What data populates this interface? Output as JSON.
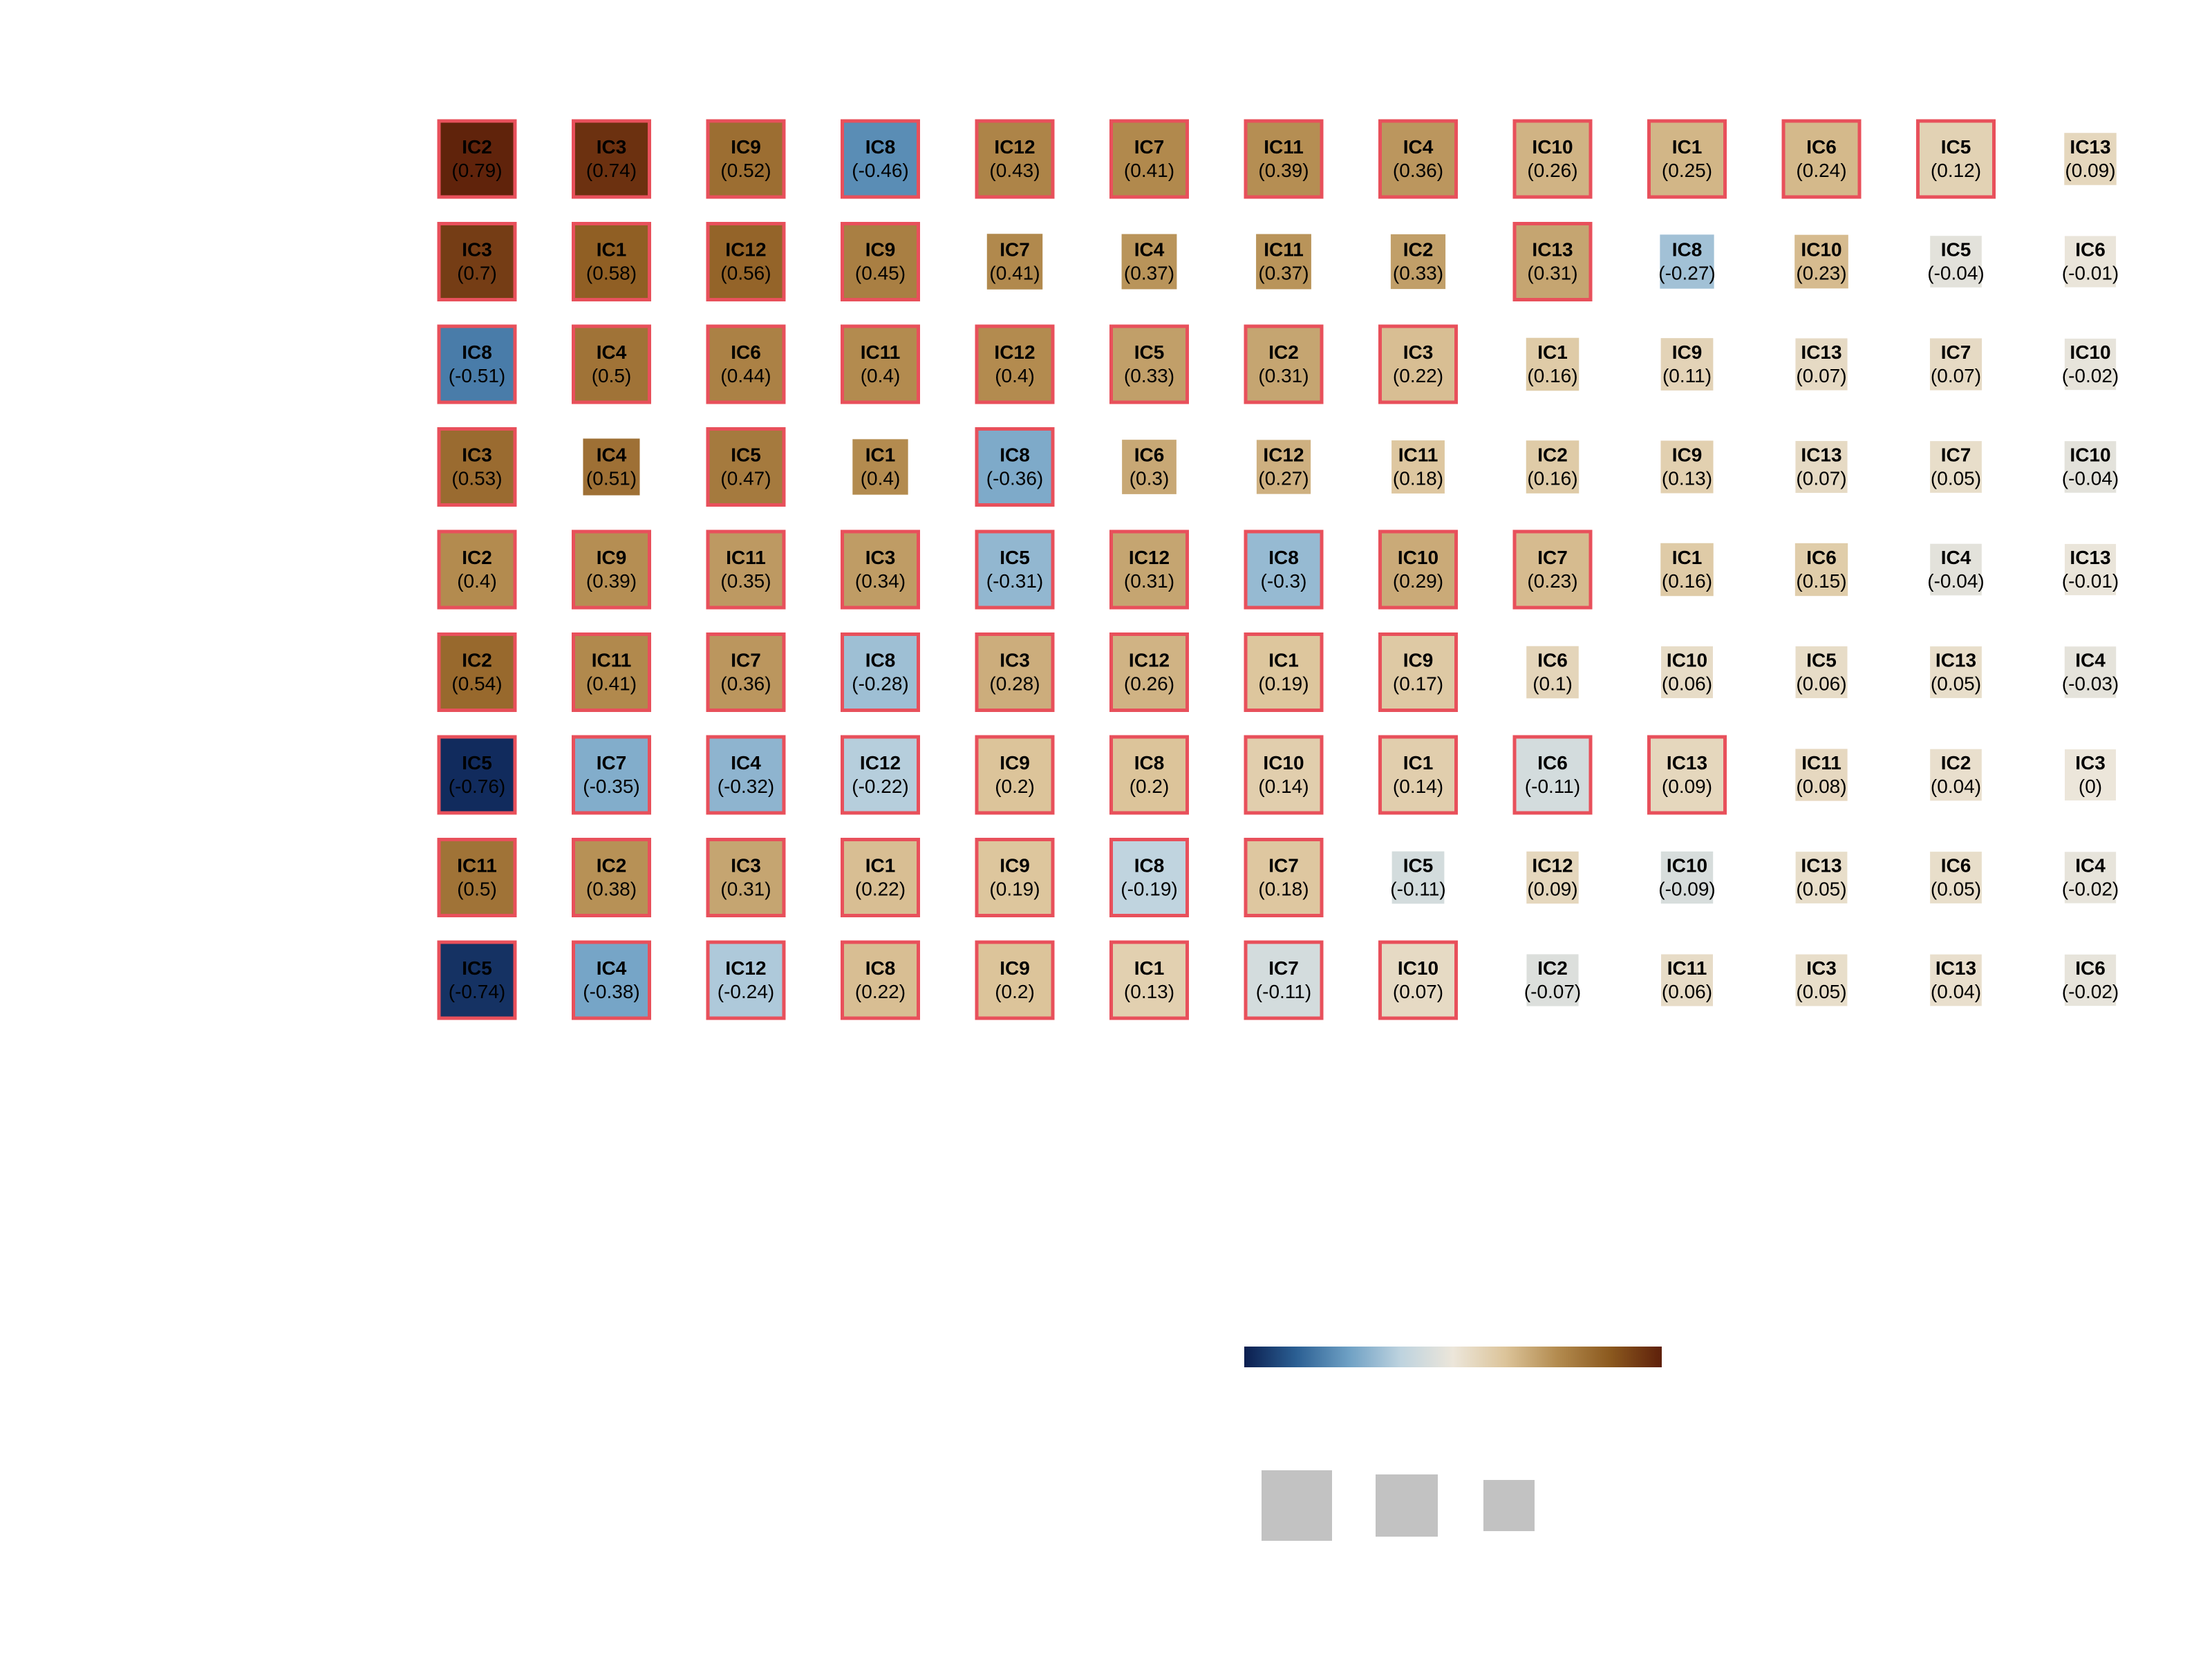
{
  "chart_data": {
    "type": "heatmap",
    "value_range": [
      -0.8,
      0.8
    ],
    "colorscale": [
      "#0b1e4f",
      "#2b5f93",
      "#6ea0c4",
      "#bed3df",
      "#ece6da",
      "#dcc49a",
      "#b38b4f",
      "#8c5a1f",
      "#5e200a"
    ],
    "highlight_color": "#e8505b",
    "legend_size_swatch_color": "#c2c2c2",
    "rows": [
      {
        "cells": [
          {
            "ic": "IC2",
            "value": 0.79,
            "highlight": true
          },
          {
            "ic": "IC3",
            "value": 0.74,
            "highlight": true
          },
          {
            "ic": "IC9",
            "value": 0.52,
            "highlight": true
          },
          {
            "ic": "IC8",
            "value": -0.46,
            "highlight": true
          },
          {
            "ic": "IC12",
            "value": 0.43,
            "highlight": true
          },
          {
            "ic": "IC7",
            "value": 0.41,
            "highlight": true
          },
          {
            "ic": "IC11",
            "value": 0.39,
            "highlight": true
          },
          {
            "ic": "IC4",
            "value": 0.36,
            "highlight": true
          },
          {
            "ic": "IC10",
            "value": 0.26,
            "highlight": true
          },
          {
            "ic": "IC1",
            "value": 0.25,
            "highlight": true
          },
          {
            "ic": "IC6",
            "value": 0.24,
            "highlight": true
          },
          {
            "ic": "IC5",
            "value": 0.12,
            "highlight": true
          },
          {
            "ic": "IC13",
            "value": 0.09,
            "highlight": false
          }
        ]
      },
      {
        "cells": [
          {
            "ic": "IC3",
            "value": 0.7,
            "highlight": true
          },
          {
            "ic": "IC1",
            "value": 0.58,
            "highlight": true
          },
          {
            "ic": "IC12",
            "value": 0.56,
            "highlight": true
          },
          {
            "ic": "IC9",
            "value": 0.45,
            "highlight": true
          },
          {
            "ic": "IC7",
            "value": 0.41,
            "highlight": false
          },
          {
            "ic": "IC4",
            "value": 0.37,
            "highlight": false
          },
          {
            "ic": "IC11",
            "value": 0.37,
            "highlight": false
          },
          {
            "ic": "IC2",
            "value": 0.33,
            "highlight": false
          },
          {
            "ic": "IC13",
            "value": 0.31,
            "highlight": true
          },
          {
            "ic": "IC8",
            "value": -0.27,
            "highlight": false
          },
          {
            "ic": "IC10",
            "value": 0.23,
            "highlight": false
          },
          {
            "ic": "IC5",
            "value": -0.04,
            "highlight": false
          },
          {
            "ic": "IC6",
            "value": -0.01,
            "highlight": false
          }
        ]
      },
      {
        "cells": [
          {
            "ic": "IC8",
            "value": -0.51,
            "highlight": true
          },
          {
            "ic": "IC4",
            "value": 0.5,
            "highlight": true
          },
          {
            "ic": "IC6",
            "value": 0.44,
            "highlight": true
          },
          {
            "ic": "IC11",
            "value": 0.4,
            "highlight": true
          },
          {
            "ic": "IC12",
            "value": 0.4,
            "highlight": true
          },
          {
            "ic": "IC5",
            "value": 0.33,
            "highlight": true
          },
          {
            "ic": "IC2",
            "value": 0.31,
            "highlight": true
          },
          {
            "ic": "IC3",
            "value": 0.22,
            "highlight": true
          },
          {
            "ic": "IC1",
            "value": 0.16,
            "highlight": false
          },
          {
            "ic": "IC9",
            "value": 0.11,
            "highlight": false
          },
          {
            "ic": "IC13",
            "value": 0.07,
            "highlight": false
          },
          {
            "ic": "IC7",
            "value": 0.07,
            "highlight": false
          },
          {
            "ic": "IC10",
            "value": -0.02,
            "highlight": false
          }
        ]
      },
      {
        "cells": [
          {
            "ic": "IC3",
            "value": 0.53,
            "highlight": true
          },
          {
            "ic": "IC4",
            "value": 0.51,
            "highlight": false
          },
          {
            "ic": "IC5",
            "value": 0.47,
            "highlight": true
          },
          {
            "ic": "IC1",
            "value": 0.4,
            "highlight": false
          },
          {
            "ic": "IC8",
            "value": -0.36,
            "highlight": true
          },
          {
            "ic": "IC6",
            "value": 0.3,
            "highlight": false
          },
          {
            "ic": "IC12",
            "value": 0.27,
            "highlight": false
          },
          {
            "ic": "IC11",
            "value": 0.18,
            "highlight": false
          },
          {
            "ic": "IC2",
            "value": 0.16,
            "highlight": false
          },
          {
            "ic": "IC9",
            "value": 0.13,
            "highlight": false
          },
          {
            "ic": "IC13",
            "value": 0.07,
            "highlight": false
          },
          {
            "ic": "IC7",
            "value": 0.05,
            "highlight": false
          },
          {
            "ic": "IC10",
            "value": -0.04,
            "highlight": false
          }
        ]
      },
      {
        "cells": [
          {
            "ic": "IC2",
            "value": 0.4,
            "highlight": true
          },
          {
            "ic": "IC9",
            "value": 0.39,
            "highlight": true
          },
          {
            "ic": "IC11",
            "value": 0.35,
            "highlight": true
          },
          {
            "ic": "IC3",
            "value": 0.34,
            "highlight": true
          },
          {
            "ic": "IC5",
            "value": -0.31,
            "highlight": true
          },
          {
            "ic": "IC12",
            "value": 0.31,
            "highlight": true
          },
          {
            "ic": "IC8",
            "value": -0.3,
            "highlight": true
          },
          {
            "ic": "IC10",
            "value": 0.29,
            "highlight": true
          },
          {
            "ic": "IC7",
            "value": 0.23,
            "highlight": true
          },
          {
            "ic": "IC1",
            "value": 0.16,
            "highlight": false
          },
          {
            "ic": "IC6",
            "value": 0.15,
            "highlight": false
          },
          {
            "ic": "IC4",
            "value": -0.04,
            "highlight": false
          },
          {
            "ic": "IC13",
            "value": -0.01,
            "highlight": false
          }
        ]
      },
      {
        "cells": [
          {
            "ic": "IC2",
            "value": 0.54,
            "highlight": true
          },
          {
            "ic": "IC11",
            "value": 0.41,
            "highlight": true
          },
          {
            "ic": "IC7",
            "value": 0.36,
            "highlight": true
          },
          {
            "ic": "IC8",
            "value": -0.28,
            "highlight": true
          },
          {
            "ic": "IC3",
            "value": 0.28,
            "highlight": true
          },
          {
            "ic": "IC12",
            "value": 0.26,
            "highlight": true
          },
          {
            "ic": "IC1",
            "value": 0.19,
            "highlight": true
          },
          {
            "ic": "IC9",
            "value": 0.17,
            "highlight": true
          },
          {
            "ic": "IC6",
            "value": 0.1,
            "highlight": false
          },
          {
            "ic": "IC10",
            "value": 0.06,
            "highlight": false
          },
          {
            "ic": "IC5",
            "value": 0.06,
            "highlight": false
          },
          {
            "ic": "IC13",
            "value": 0.05,
            "highlight": false
          },
          {
            "ic": "IC4",
            "value": -0.03,
            "highlight": false
          }
        ]
      },
      {
        "cells": [
          {
            "ic": "IC5",
            "value": -0.76,
            "highlight": true
          },
          {
            "ic": "IC7",
            "value": -0.35,
            "highlight": true
          },
          {
            "ic": "IC4",
            "value": -0.32,
            "highlight": true
          },
          {
            "ic": "IC12",
            "value": -0.22,
            "highlight": true
          },
          {
            "ic": "IC9",
            "value": 0.2,
            "highlight": true
          },
          {
            "ic": "IC8",
            "value": 0.2,
            "highlight": true
          },
          {
            "ic": "IC10",
            "value": 0.14,
            "highlight": true
          },
          {
            "ic": "IC1",
            "value": 0.14,
            "highlight": true
          },
          {
            "ic": "IC6",
            "value": -0.11,
            "highlight": true
          },
          {
            "ic": "IC13",
            "value": 0.09,
            "highlight": true
          },
          {
            "ic": "IC11",
            "value": 0.08,
            "highlight": false
          },
          {
            "ic": "IC2",
            "value": 0.04,
            "highlight": false
          },
          {
            "ic": "IC3",
            "value": 0,
            "highlight": false
          }
        ]
      },
      {
        "cells": [
          {
            "ic": "IC11",
            "value": 0.5,
            "highlight": true
          },
          {
            "ic": "IC2",
            "value": 0.38,
            "highlight": true
          },
          {
            "ic": "IC3",
            "value": 0.31,
            "highlight": true
          },
          {
            "ic": "IC1",
            "value": 0.22,
            "highlight": true
          },
          {
            "ic": "IC9",
            "value": 0.19,
            "highlight": true
          },
          {
            "ic": "IC8",
            "value": -0.19,
            "highlight": true
          },
          {
            "ic": "IC7",
            "value": 0.18,
            "highlight": true
          },
          {
            "ic": "IC5",
            "value": -0.11,
            "highlight": false
          },
          {
            "ic": "IC12",
            "value": 0.09,
            "highlight": false
          },
          {
            "ic": "IC10",
            "value": -0.09,
            "highlight": false
          },
          {
            "ic": "IC13",
            "value": 0.05,
            "highlight": false
          },
          {
            "ic": "IC6",
            "value": 0.05,
            "highlight": false
          },
          {
            "ic": "IC4",
            "value": -0.02,
            "highlight": false
          }
        ]
      },
      {
        "cells": [
          {
            "ic": "IC5",
            "value": -0.74,
            "highlight": true
          },
          {
            "ic": "IC4",
            "value": -0.38,
            "highlight": true
          },
          {
            "ic": "IC12",
            "value": -0.24,
            "highlight": true
          },
          {
            "ic": "IC8",
            "value": 0.22,
            "highlight": true
          },
          {
            "ic": "IC9",
            "value": 0.2,
            "highlight": true
          },
          {
            "ic": "IC1",
            "value": 0.13,
            "highlight": true
          },
          {
            "ic": "IC7",
            "value": -0.11,
            "highlight": true
          },
          {
            "ic": "IC10",
            "value": 0.07,
            "highlight": true
          },
          {
            "ic": "IC2",
            "value": -0.07,
            "highlight": false
          },
          {
            "ic": "IC11",
            "value": 0.06,
            "highlight": false
          },
          {
            "ic": "IC3",
            "value": 0.05,
            "highlight": false
          },
          {
            "ic": "IC13",
            "value": 0.04,
            "highlight": false
          },
          {
            "ic": "IC6",
            "value": -0.02,
            "highlight": false
          }
        ]
      }
    ],
    "size_legend_swatches": 3
  }
}
